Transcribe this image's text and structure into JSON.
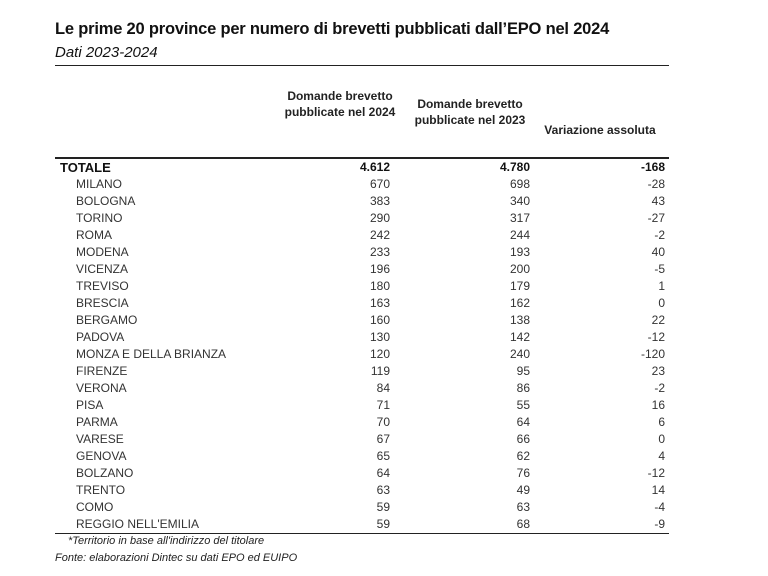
{
  "title": "Le prime 20 province per numero di brevetti pubblicati dall’EPO nel 2024",
  "subtitle": "Dati 2023-2024",
  "columns": [
    "Domande brevetto pubblicate nel 2024",
    "Domande brevetto pubblicate nel 2023",
    "Variazione assoluta"
  ],
  "total": {
    "name": "TOTALE",
    "v2024": "4.612",
    "v2023": "4.780",
    "diff": "-168"
  },
  "rows": [
    {
      "name": "MILANO",
      "v2024": "670",
      "v2023": "698",
      "diff": "-28"
    },
    {
      "name": "BOLOGNA",
      "v2024": "383",
      "v2023": "340",
      "diff": "43"
    },
    {
      "name": "TORINO",
      "v2024": "290",
      "v2023": "317",
      "diff": "-27"
    },
    {
      "name": "ROMA",
      "v2024": "242",
      "v2023": "244",
      "diff": "-2"
    },
    {
      "name": "MODENA",
      "v2024": "233",
      "v2023": "193",
      "diff": "40"
    },
    {
      "name": "VICENZA",
      "v2024": "196",
      "v2023": "200",
      "diff": "-5"
    },
    {
      "name": "TREVISO",
      "v2024": "180",
      "v2023": "179",
      "diff": "1"
    },
    {
      "name": "BRESCIA",
      "v2024": "163",
      "v2023": "162",
      "diff": "0"
    },
    {
      "name": "BERGAMO",
      "v2024": "160",
      "v2023": "138",
      "diff": "22"
    },
    {
      "name": "PADOVA",
      "v2024": "130",
      "v2023": "142",
      "diff": "-12"
    },
    {
      "name": "MONZA E DELLA BRIANZA",
      "v2024": "120",
      "v2023": "240",
      "diff": "-120"
    },
    {
      "name": "FIRENZE",
      "v2024": "119",
      "v2023": "95",
      "diff": "23"
    },
    {
      "name": "VERONA",
      "v2024": "84",
      "v2023": "86",
      "diff": "-2"
    },
    {
      "name": "PISA",
      "v2024": "71",
      "v2023": "55",
      "diff": "16"
    },
    {
      "name": "PARMA",
      "v2024": "70",
      "v2023": "64",
      "diff": "6"
    },
    {
      "name": "VARESE",
      "v2024": "67",
      "v2023": "66",
      "diff": "0"
    },
    {
      "name": "GENOVA",
      "v2024": "65",
      "v2023": "62",
      "diff": "4"
    },
    {
      "name": "BOLZANO",
      "v2024": "64",
      "v2023": "76",
      "diff": "-12"
    },
    {
      "name": "TRENTO",
      "v2024": "63",
      "v2023": "49",
      "diff": "14"
    },
    {
      "name": "COMO",
      "v2024": "59",
      "v2023": "63",
      "diff": "-4"
    },
    {
      "name": "REGGIO NELL'EMILIA",
      "v2024": "59",
      "v2023": "68",
      "diff": "-9"
    }
  ],
  "footnote": "*Territorio in base all'indirizzo del titolare",
  "source": "Fonte: elaborazioni Dintec su dati EPO ed EUIPO"
}
